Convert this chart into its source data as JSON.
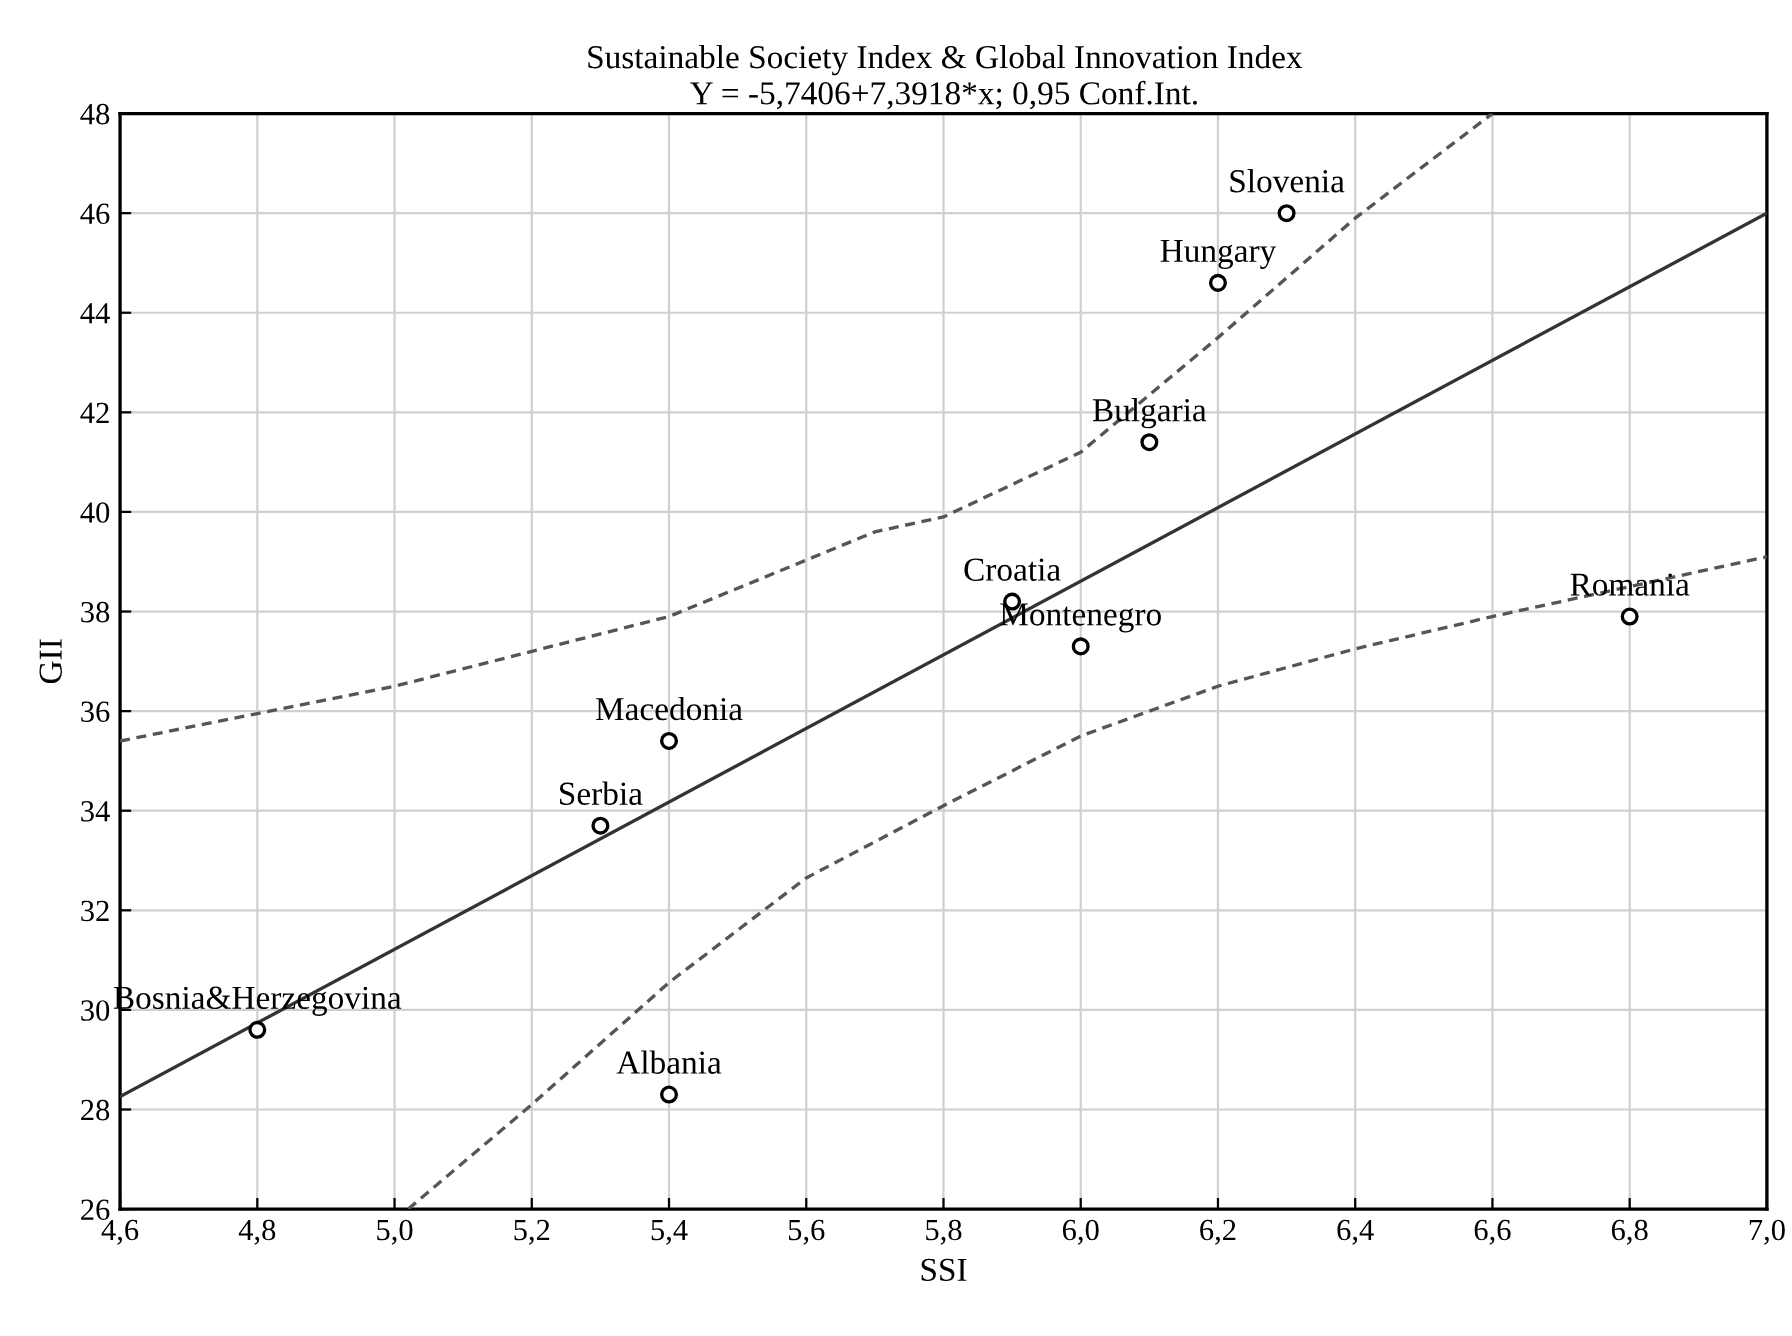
{
  "chart_data": {
    "type": "scatter",
    "title": "Sustainable Society Index & Global Innovation Index",
    "subtitle": "Y = -5,7406+7,3918*x; 0,95 Conf.Int.",
    "xlabel": "SSI",
    "ylabel": "GII",
    "series": [
      {
        "color": "#000000",
        "marker": "circle",
        "x": [
          4.8,
          5.3,
          5.4,
          5.4,
          5.9,
          6.0,
          6.1,
          6.2,
          6.3,
          6.8
        ],
        "values": [
          29.6,
          33.7,
          35.4,
          28.3,
          38.2,
          37.3,
          41.4,
          44.6,
          46.0,
          37.9
        ]
      },
      {
        "type": "line",
        "color": "#333333",
        "line_style": "solid",
        "x": [
          4.6,
          7.0
        ],
        "values": [
          28.26,
          46.0
        ]
      },
      {
        "type": "line",
        "color": "#555555",
        "line_style": "dashed",
        "x": [
          4.6,
          4.8,
          5.0,
          5.2,
          5.4,
          5.7,
          5.8,
          6.0,
          6.2,
          6.4,
          6.6
        ],
        "values": [
          35.4,
          35.95,
          36.5,
          37.2,
          37.9,
          39.6,
          39.9,
          41.2,
          43.5,
          45.9,
          48.0
        ]
      },
      {
        "type": "line",
        "color": "#555555",
        "line_style": "dashed",
        "x": [
          5.02,
          5.2,
          5.4,
          5.6,
          5.8,
          6.0,
          6.2,
          6.4,
          6.6,
          6.8,
          7.0
        ],
        "values": [
          26.0,
          28.1,
          30.55,
          32.65,
          34.1,
          35.5,
          36.5,
          37.25,
          37.9,
          38.5,
          39.1
        ]
      }
    ],
    "annotations": [
      {
        "text": "Bosnia&Herzegovina",
        "x": 4.8,
        "y": 29.6
      },
      {
        "text": "Serbia",
        "x": 5.3,
        "y": 33.7
      },
      {
        "text": "Macedonia",
        "x": 5.4,
        "y": 35.4
      },
      {
        "text": "Albania",
        "x": 5.4,
        "y": 28.3
      },
      {
        "text": "Croatia",
        "x": 5.9,
        "y": 38.2
      },
      {
        "text": "Montenegro",
        "x": 6.0,
        "y": 37.3
      },
      {
        "text": "Bulgaria",
        "x": 6.1,
        "y": 41.4
      },
      {
        "text": "Hungary",
        "x": 6.2,
        "y": 44.6
      },
      {
        "text": "Slovenia",
        "x": 6.3,
        "y": 46.0
      },
      {
        "text": "Romania",
        "x": 6.8,
        "y": 37.9
      }
    ],
    "xlim": [
      4.6,
      7.0
    ],
    "xticks": [
      {
        "value": 4.6,
        "label": "4,6"
      },
      {
        "value": 4.8,
        "label": "4,8"
      },
      {
        "value": 5.0,
        "label": "5,0"
      },
      {
        "value": 5.2,
        "label": "5,2"
      },
      {
        "value": 5.4,
        "label": "5,4"
      },
      {
        "value": 5.6,
        "label": "5,6"
      },
      {
        "value": 5.8,
        "label": "5,8"
      },
      {
        "value": 6.0,
        "label": "6,0"
      },
      {
        "value": 6.2,
        "label": "6,2"
      },
      {
        "value": 6.4,
        "label": "6,4"
      },
      {
        "value": 6.6,
        "label": "6,6"
      },
      {
        "value": 6.8,
        "label": "6,8"
      },
      {
        "value": 7.0,
        "label": "7,0"
      }
    ],
    "ylim": [
      26,
      48
    ],
    "yticks": [
      26,
      28,
      30,
      32,
      34,
      36,
      38,
      40,
      42,
      44,
      46,
      48
    ],
    "grid": true,
    "legend": false
  }
}
